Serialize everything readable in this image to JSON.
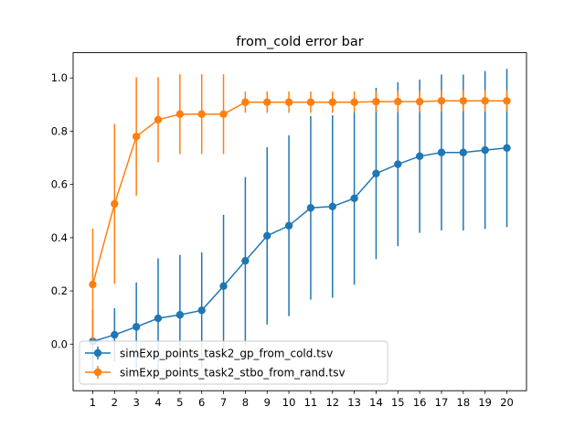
{
  "chart_data": {
    "type": "line",
    "title": "from_cold error bar",
    "xlabel": "",
    "ylabel": "",
    "x": [
      1,
      2,
      3,
      4,
      5,
      6,
      7,
      8,
      9,
      10,
      11,
      12,
      13,
      14,
      15,
      16,
      17,
      18,
      19,
      20
    ],
    "xticks": [
      "1",
      "2",
      "3",
      "4",
      "5",
      "6",
      "7",
      "8",
      "9",
      "10",
      "11",
      "12",
      "13",
      "14",
      "15",
      "16",
      "17",
      "18",
      "19",
      "20"
    ],
    "yticks": [
      "0.0",
      "0.2",
      "0.4",
      "0.6",
      "0.8",
      "1.0"
    ],
    "ytick_values": [
      0.0,
      0.2,
      0.4,
      0.6,
      0.8,
      1.0
    ],
    "xlim": [
      0.1,
      20.9
    ],
    "ylim": [
      -0.175,
      1.095
    ],
    "grid": false,
    "legend_location": "lower-left",
    "series": [
      {
        "name": "simExp_points_task2_gp_from_cold.tsv",
        "color": "#1f77b4",
        "values": [
          0.01,
          0.035,
          0.065,
          0.097,
          0.11,
          0.127,
          0.218,
          0.313,
          0.407,
          0.445,
          0.512,
          0.517,
          0.548,
          0.641,
          0.676,
          0.706,
          0.72,
          0.72,
          0.729,
          0.737
        ],
        "errors": [
          0.12,
          0.1,
          0.167,
          0.225,
          0.225,
          0.218,
          0.268,
          0.315,
          0.333,
          0.34,
          0.345,
          0.343,
          0.325,
          0.322,
          0.308,
          0.288,
          0.293,
          0.293,
          0.297,
          0.297
        ]
      },
      {
        "name": "simExp_points_task2_stbo_from_rand.tsv",
        "color": "#ff7f0e",
        "values": [
          0.224,
          0.527,
          0.78,
          0.843,
          0.864,
          0.864,
          0.864,
          0.909,
          0.909,
          0.909,
          0.909,
          0.909,
          0.909,
          0.911,
          0.911,
          0.911,
          0.914,
          0.914,
          0.914,
          0.914
        ],
        "errors": [
          0.21,
          0.3,
          0.222,
          0.16,
          0.15,
          0.15,
          0.15,
          0.04,
          0.04,
          0.04,
          0.04,
          0.04,
          0.04,
          0.04,
          0.04,
          0.04,
          0.04,
          0.04,
          0.04,
          0.04
        ]
      }
    ]
  }
}
